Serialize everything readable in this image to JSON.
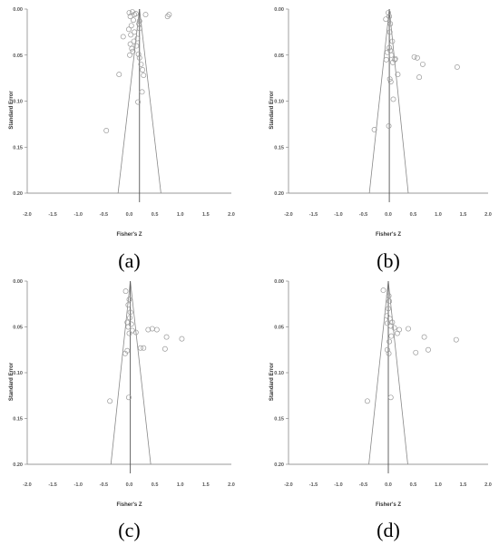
{
  "chart_data": [
    {
      "type": "scatter",
      "panel": "(a)",
      "xlabel": "Fisher's Z",
      "ylabel": "Standard Error",
      "xlim": [
        -2.0,
        2.0
      ],
      "ylim": [
        0.0,
        0.2
      ],
      "y_reversed": true,
      "xticks": [
        "-2.0",
        "-1.5",
        "-1.0",
        "-0.5",
        "0.0",
        "0.5",
        "1.0",
        "1.5",
        "2.0"
      ],
      "yticks": [
        "0.00",
        "0.05",
        "0.10",
        "0.15",
        "0.20"
      ],
      "mean": 0.2,
      "funnel": {
        "left_bottom": -0.22,
        "right_bottom": 0.62
      },
      "points": [
        {
          "x": 0.0,
          "y": 0.004
        },
        {
          "x": 0.06,
          "y": 0.003
        },
        {
          "x": 0.1,
          "y": 0.006
        },
        {
          "x": 0.02,
          "y": 0.008
        },
        {
          "x": 0.13,
          "y": 0.005
        },
        {
          "x": 0.32,
          "y": 0.006
        },
        {
          "x": 0.78,
          "y": 0.006
        },
        {
          "x": 0.75,
          "y": 0.008
        },
        {
          "x": 0.08,
          "y": 0.012
        },
        {
          "x": 0.2,
          "y": 0.013
        },
        {
          "x": 0.19,
          "y": 0.016
        },
        {
          "x": 0.04,
          "y": 0.018
        },
        {
          "x": 0.2,
          "y": 0.021
        },
        {
          "x": -0.01,
          "y": 0.022
        },
        {
          "x": 0.1,
          "y": 0.025
        },
        {
          "x": 0.03,
          "y": 0.028
        },
        {
          "x": -0.12,
          "y": 0.03
        },
        {
          "x": 0.16,
          "y": 0.032
        },
        {
          "x": 0.09,
          "y": 0.035
        },
        {
          "x": 0.02,
          "y": 0.038
        },
        {
          "x": 0.14,
          "y": 0.04
        },
        {
          "x": 0.05,
          "y": 0.043
        },
        {
          "x": 0.07,
          "y": 0.046
        },
        {
          "x": 0.01,
          "y": 0.05
        },
        {
          "x": 0.18,
          "y": 0.049
        },
        {
          "x": 0.2,
          "y": 0.053
        },
        {
          "x": 0.23,
          "y": 0.06
        },
        {
          "x": 0.26,
          "y": 0.066
        },
        {
          "x": -0.2,
          "y": 0.071
        },
        {
          "x": 0.28,
          "y": 0.072
        },
        {
          "x": 0.25,
          "y": 0.09
        },
        {
          "x": 0.17,
          "y": 0.101
        },
        {
          "x": -0.45,
          "y": 0.132
        }
      ]
    },
    {
      "type": "scatter",
      "panel": "(b)",
      "xlabel": "Fisher's Z",
      "ylabel": "Standard Error",
      "xlim": [
        -2.0,
        2.0
      ],
      "ylim": [
        0.0,
        0.2
      ],
      "y_reversed": true,
      "xticks": [
        "-2.0",
        "-1.5",
        "-1.0",
        "-0.5",
        "0.0",
        "0.5",
        "1.0",
        "1.5",
        "2.0"
      ],
      "yticks": [
        "0.00",
        "0.05",
        "0.10",
        "0.15",
        "0.20"
      ],
      "mean": 0.02,
      "funnel": {
        "left_bottom": -0.38,
        "right_bottom": 0.4
      },
      "points": [
        {
          "x": 0.0,
          "y": 0.004
        },
        {
          "x": 0.02,
          "y": 0.008
        },
        {
          "x": -0.05,
          "y": 0.011
        },
        {
          "x": 0.04,
          "y": 0.016
        },
        {
          "x": 0.03,
          "y": 0.025
        },
        {
          "x": 0.08,
          "y": 0.035
        },
        {
          "x": 0.02,
          "y": 0.042
        },
        {
          "x": 0.04,
          "y": 0.045
        },
        {
          "x": -0.02,
          "y": 0.047
        },
        {
          "x": 0.06,
          "y": 0.05
        },
        {
          "x": 0.14,
          "y": 0.054
        },
        {
          "x": 0.13,
          "y": 0.055
        },
        {
          "x": -0.04,
          "y": 0.055
        },
        {
          "x": 0.09,
          "y": 0.058
        },
        {
          "x": 0.52,
          "y": 0.052
        },
        {
          "x": 0.58,
          "y": 0.053
        },
        {
          "x": 0.69,
          "y": 0.06
        },
        {
          "x": 1.38,
          "y": 0.063
        },
        {
          "x": 0.62,
          "y": 0.074
        },
        {
          "x": 0.19,
          "y": 0.071
        },
        {
          "x": 0.03,
          "y": 0.076
        },
        {
          "x": 0.05,
          "y": 0.079
        },
        {
          "x": 0.1,
          "y": 0.098
        },
        {
          "x": -0.28,
          "y": 0.131
        },
        {
          "x": 0.01,
          "y": 0.127
        }
      ]
    },
    {
      "type": "scatter",
      "panel": "(c)",
      "xlabel": "Fisher's Z",
      "ylabel": "Standard Error",
      "xlim": [
        -2.0,
        2.0
      ],
      "ylim": [
        0.0,
        0.2
      ],
      "y_reversed": true,
      "xticks": [
        "-2.0",
        "-1.5",
        "-1.0",
        "-0.5",
        "0.0",
        "0.5",
        "1.0",
        "1.5",
        "2.0"
      ],
      "yticks": [
        "0.00",
        "0.05",
        "0.10",
        "0.15",
        "0.20"
      ],
      "mean": 0.02,
      "funnel": {
        "left_bottom": -0.36,
        "right_bottom": 0.42
      },
      "points": [
        {
          "x": -0.07,
          "y": 0.011
        },
        {
          "x": 0.0,
          "y": 0.02
        },
        {
          "x": -0.02,
          "y": 0.026
        },
        {
          "x": 0.02,
          "y": 0.034
        },
        {
          "x": 0.01,
          "y": 0.04
        },
        {
          "x": -0.04,
          "y": 0.045
        },
        {
          "x": 0.04,
          "y": 0.047
        },
        {
          "x": -0.02,
          "y": 0.05
        },
        {
          "x": 0.06,
          "y": 0.054
        },
        {
          "x": 0.13,
          "y": 0.056
        },
        {
          "x": 0.0,
          "y": 0.057
        },
        {
          "x": 0.37,
          "y": 0.053
        },
        {
          "x": 0.45,
          "y": 0.052
        },
        {
          "x": 0.54,
          "y": 0.053
        },
        {
          "x": 0.73,
          "y": 0.061
        },
        {
          "x": 1.03,
          "y": 0.063
        },
        {
          "x": 0.7,
          "y": 0.074
        },
        {
          "x": 0.22,
          "y": 0.073
        },
        {
          "x": 0.28,
          "y": 0.073
        },
        {
          "x": -0.04,
          "y": 0.076
        },
        {
          "x": -0.08,
          "y": 0.079
        },
        {
          "x": -0.38,
          "y": 0.131
        },
        {
          "x": -0.01,
          "y": 0.127
        }
      ]
    },
    {
      "type": "scatter",
      "panel": "(d)",
      "xlabel": "Fisher's Z",
      "ylabel": "Standard Error",
      "xlim": [
        -2.0,
        2.0
      ],
      "ylim": [
        0.0,
        0.2
      ],
      "y_reversed": true,
      "xticks": [
        "-2.0",
        "-1.5",
        "-1.0",
        "-0.5",
        "0.0",
        "0.5",
        "1.0",
        "1.5",
        "2.0"
      ],
      "yticks": [
        "0.00",
        "0.05",
        "0.10",
        "0.15",
        "0.20"
      ],
      "mean": 0.0,
      "funnel": {
        "left_bottom": -0.39,
        "right_bottom": 0.39
      },
      "points": [
        {
          "x": -0.1,
          "y": 0.01
        },
        {
          "x": 0.01,
          "y": 0.016
        },
        {
          "x": 0.02,
          "y": 0.022
        },
        {
          "x": 0.0,
          "y": 0.03
        },
        {
          "x": -0.03,
          "y": 0.038
        },
        {
          "x": 0.03,
          "y": 0.041
        },
        {
          "x": 0.08,
          "y": 0.045
        },
        {
          "x": -0.02,
          "y": 0.046
        },
        {
          "x": 0.05,
          "y": 0.049
        },
        {
          "x": 0.12,
          "y": 0.051
        },
        {
          "x": 0.22,
          "y": 0.053
        },
        {
          "x": 0.18,
          "y": 0.057
        },
        {
          "x": 0.4,
          "y": 0.052
        },
        {
          "x": 0.06,
          "y": 0.06
        },
        {
          "x": 0.02,
          "y": 0.066
        },
        {
          "x": 0.72,
          "y": 0.061
        },
        {
          "x": 1.36,
          "y": 0.064
        },
        {
          "x": 0.55,
          "y": 0.078
        },
        {
          "x": 0.8,
          "y": 0.075
        },
        {
          "x": -0.02,
          "y": 0.075
        },
        {
          "x": 0.01,
          "y": 0.079
        },
        {
          "x": -0.42,
          "y": 0.131
        },
        {
          "x": 0.05,
          "y": 0.127
        }
      ]
    }
  ]
}
